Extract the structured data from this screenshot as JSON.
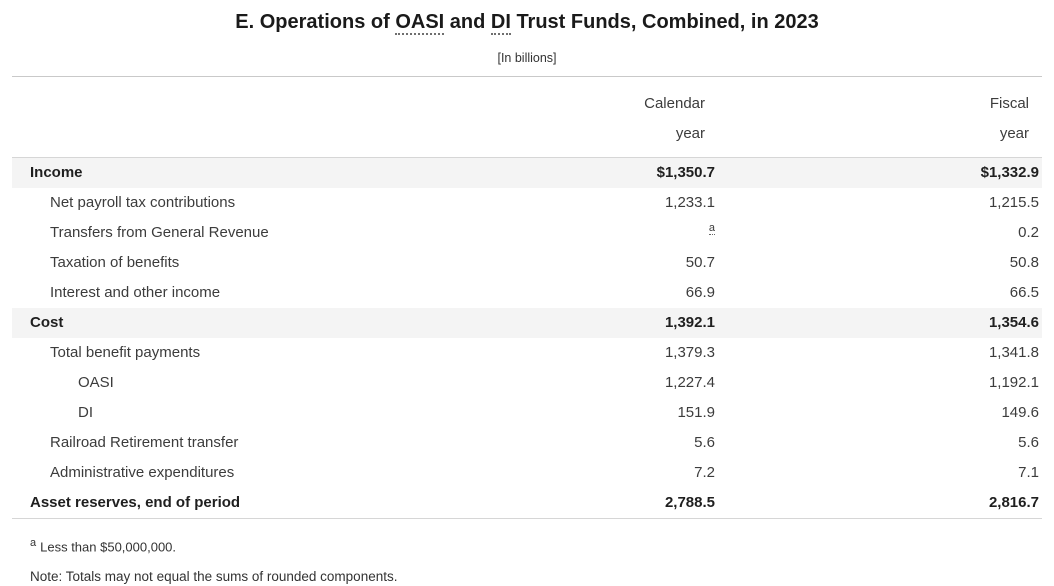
{
  "title": {
    "prefix": "E. Operations of ",
    "abbr_oasi": "OASI",
    "mid": " and ",
    "abbr_di": "DI",
    "suffix": " Trust Funds, Combined, in 2023"
  },
  "subtitle": "[In billions]",
  "table": {
    "headers": {
      "calendar_line1": "Calendar",
      "calendar_line2": "year",
      "fiscal_line1": "Fiscal",
      "fiscal_line2": "year"
    },
    "rows": [
      {
        "label": "Income",
        "indent": 0,
        "bold": true,
        "shaded": true,
        "calendar": "$1,350.7",
        "fiscal": "$1,332.9"
      },
      {
        "label": "Net payroll tax contributions",
        "indent": 1,
        "bold": false,
        "shaded": false,
        "calendar": "1,233.1",
        "fiscal": "1,215.5"
      },
      {
        "label": "Transfers from General Revenue",
        "indent": 1,
        "bold": false,
        "shaded": false,
        "calendar": "",
        "calendar_footnote": "a",
        "fiscal": "0.2"
      },
      {
        "label": "Taxation of benefits",
        "indent": 1,
        "bold": false,
        "shaded": false,
        "calendar": "50.7",
        "fiscal": "50.8"
      },
      {
        "label": "Interest and other income",
        "indent": 1,
        "bold": false,
        "shaded": false,
        "calendar": "66.9",
        "fiscal": "66.5"
      },
      {
        "label": "Cost",
        "indent": 0,
        "bold": true,
        "shaded": true,
        "calendar": "1,392.1",
        "fiscal": "1,354.6"
      },
      {
        "label": "Total benefit payments",
        "indent": 1,
        "bold": false,
        "shaded": false,
        "calendar": "1,379.3",
        "fiscal": "1,341.8"
      },
      {
        "label": "OASI",
        "indent": 2,
        "bold": false,
        "shaded": false,
        "calendar": "1,227.4",
        "fiscal": "1,192.1"
      },
      {
        "label": "DI",
        "indent": 2,
        "bold": false,
        "shaded": false,
        "calendar": "151.9",
        "fiscal": "149.6"
      },
      {
        "label": "Railroad Retirement transfer",
        "indent": 1,
        "bold": false,
        "shaded": false,
        "calendar": "5.6",
        "fiscal": "5.6"
      },
      {
        "label": "Administrative expenditures",
        "indent": 1,
        "bold": false,
        "shaded": false,
        "calendar": "7.2",
        "fiscal": "7.1"
      },
      {
        "label": "Asset reserves, end of period",
        "indent": 0,
        "bold": true,
        "shaded": false,
        "calendar": "2,788.5",
        "fiscal": "2,816.7"
      }
    ]
  },
  "footnotes": {
    "marker": "a",
    "footnote_text": "Less than $50,000,000.",
    "note": "Note: Totals may not equal the sums of rounded components."
  },
  "colors": {
    "shaded_row": "#f4f4f4",
    "rule": "#c9c9c9",
    "text": "#3c3c3c",
    "title_text": "#1a1a1a"
  }
}
